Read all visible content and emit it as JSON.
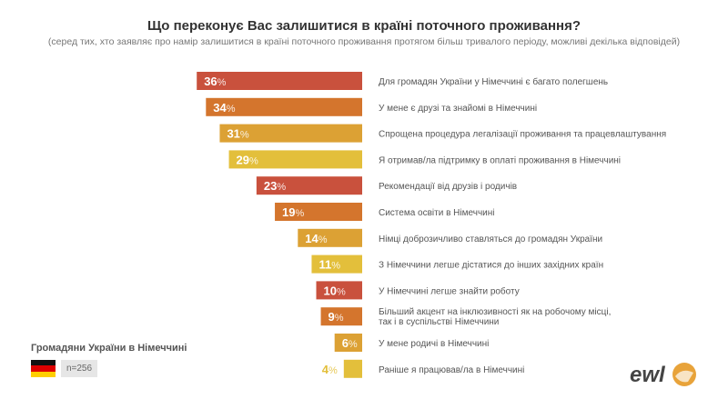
{
  "chart_data": {
    "type": "bar",
    "orientation": "horizontal",
    "title": "Що переконує Вас залишитися в країні поточного проживання?",
    "subtitle": "(серед тих, хто заявляє про намір залишитися в країні поточного проживання протягом більш тривалого періоду, можливі декілька відповідей)",
    "categories": [
      "Для громадян України у Німеччині є багато полегшень",
      "У мене є друзі та знайомі в Німеччині",
      "Спрощена процедура легалізації проживання та працевлаштування",
      "Я отримав/ла підтримку в оплаті проживання в Німеччині",
      "Рекомендації від друзів і родичів",
      "Система освіти в Німеччині",
      "Німці доброзичливо ставляться до громадян України",
      "З Німеччини легше дістатися до інших західних країн",
      "У Німеччині легше знайти роботу",
      "Більший акцент на інклюзивності як на робочому місці,|так і в суспільстві Німеччини",
      "У мене родичі в Німеччині",
      "Раніше я працював/ла в Німеччині"
    ],
    "values": [
      36,
      34,
      31,
      29,
      23,
      19,
      14,
      11,
      10,
      9,
      6,
      4
    ],
    "unit": "%",
    "colors": [
      "#c9513d",
      "#d4752d",
      "#dca134",
      "#e3bf3b"
    ],
    "grid": false,
    "legend": "none"
  },
  "group_label": "Громадяни України в Німеччині",
  "sample": "n=256",
  "logo_text": "ewl"
}
